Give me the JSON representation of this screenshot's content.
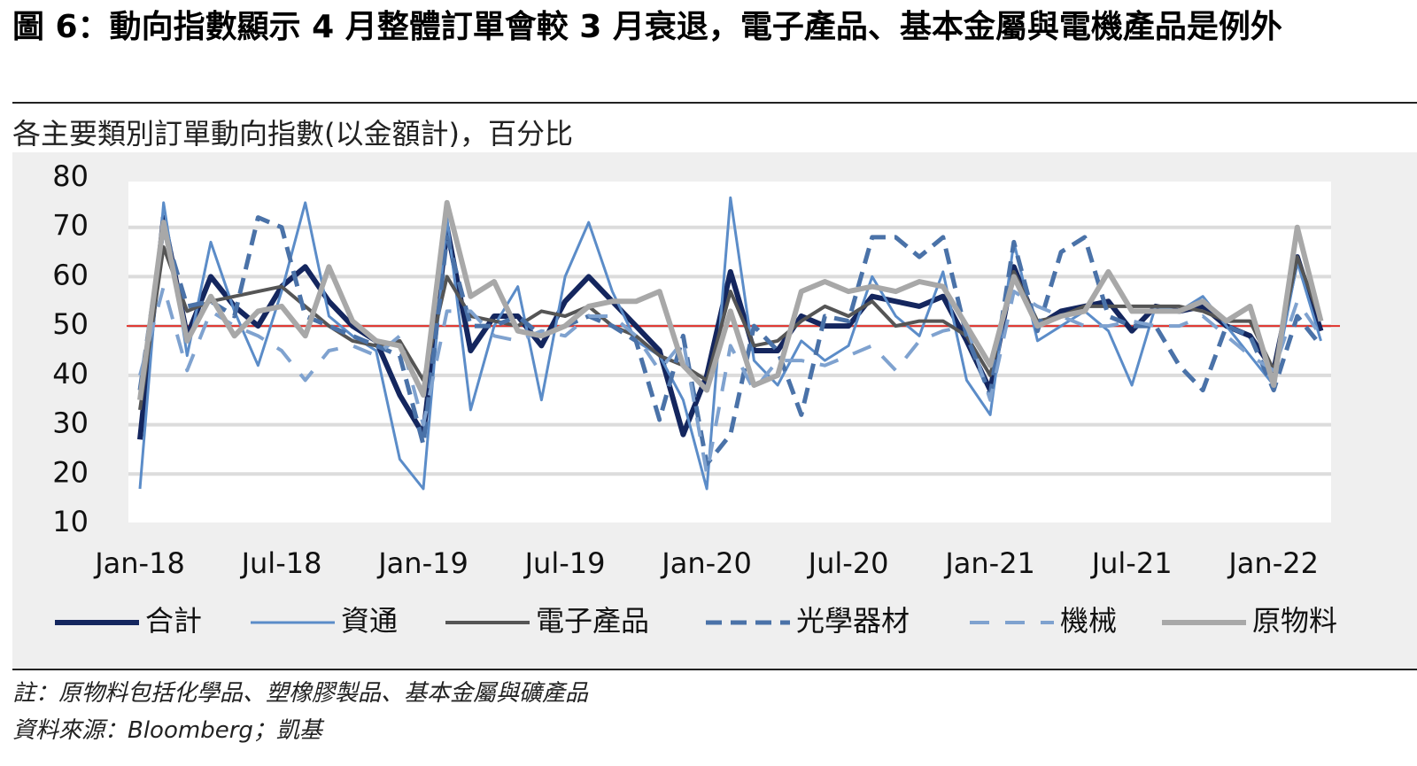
{
  "chart_data": {
    "type": "line",
    "title": "圖 6：動向指數顯示 4 月整體訂單會較 3 月衰退，電子產品、基本金屬與電機產品是例外",
    "subtitle": "各主要類別訂單動向指數(以金額計)，百分比",
    "notes": [
      "註：原物料包括化學品、塑橡膠製品、基本金屬與礦產品",
      "資料來源：Bloomberg；凱基"
    ],
    "categories": [
      "Jan-18",
      null,
      null,
      null,
      null,
      null,
      "Jul-18",
      null,
      null,
      null,
      null,
      null,
      "Jan-19",
      null,
      null,
      null,
      null,
      null,
      "Jul-19",
      null,
      null,
      null,
      null,
      null,
      "Jan-20",
      null,
      null,
      null,
      null,
      null,
      "Jul-20",
      null,
      null,
      null,
      null,
      null,
      "Jan-21",
      null,
      null,
      null,
      null,
      null,
      "Jul-21",
      null,
      null,
      null,
      null,
      null,
      "Jan-22",
      null,
      null
    ],
    "ylim": [
      10,
      80
    ],
    "yticks": [
      10,
      20,
      30,
      40,
      50,
      60,
      70,
      80
    ],
    "grid": true,
    "reference_line": {
      "value": 50,
      "color": "#e0302a"
    },
    "legend": "bottom",
    "series": [
      {
        "name": "合計",
        "color": "#14265e",
        "width": 6,
        "style": "solid",
        "values": [
          27,
          72,
          48,
          60,
          54,
          50,
          58,
          62,
          55,
          50,
          47,
          36,
          28,
          70,
          45,
          52,
          52,
          46,
          55,
          60,
          55,
          50,
          45,
          28,
          40,
          61,
          45,
          45,
          52,
          50,
          50,
          56,
          55,
          54,
          56,
          47,
          37,
          62,
          50,
          53,
          54,
          55,
          49,
          54,
          53,
          54,
          50,
          48,
          41,
          64,
          49
        ]
      },
      {
        "name": "資通",
        "color": "#5b8cc8",
        "width": 3,
        "style": "solid",
        "values": [
          17,
          75,
          44,
          67,
          53,
          42,
          57,
          75,
          52,
          48,
          45,
          23,
          17,
          72,
          33,
          50,
          58,
          35,
          60,
          71,
          57,
          47,
          44,
          35,
          17,
          76,
          43,
          38,
          47,
          43,
          46,
          60,
          52,
          48,
          61,
          39,
          32,
          67,
          47,
          50,
          53,
          49,
          38,
          54,
          53,
          56,
          50,
          44,
          38,
          63,
          47
        ]
      },
      {
        "name": "電子產品",
        "color": "#555555",
        "width": 4,
        "style": "solid",
        "values": [
          33,
          66,
          53,
          55,
          56,
          57,
          58,
          54,
          50,
          47,
          46,
          47,
          39,
          60,
          52,
          51,
          50,
          53,
          52,
          54,
          50,
          48,
          44,
          42,
          39,
          57,
          46,
          47,
          51,
          54,
          52,
          55,
          50,
          51,
          51,
          48,
          40,
          61,
          51,
          52,
          54,
          54,
          54,
          54,
          54,
          53,
          51,
          51,
          41,
          64,
          51
        ]
      },
      {
        "name": "光學器材",
        "color": "#4a72a8",
        "width": 5,
        "style": "dashed",
        "values": [
          37,
          70,
          54,
          55,
          52,
          72,
          70,
          52,
          50,
          48,
          46,
          44,
          26,
          68,
          50,
          50,
          52,
          48,
          50,
          52,
          50,
          47,
          31,
          48,
          22,
          28,
          50,
          45,
          32,
          52,
          51,
          68,
          68,
          64,
          68,
          48,
          36,
          67,
          49,
          65,
          68,
          52,
          50,
          50,
          42,
          37,
          50,
          48,
          37,
          52,
          46
        ]
      },
      {
        "name": "機械",
        "color": "#7fa2cf",
        "width": 4,
        "style": "dashed-wide",
        "values": [
          40,
          58,
          41,
          53,
          50,
          48,
          45,
          39,
          45,
          46,
          44,
          48,
          30,
          53,
          53,
          48,
          47,
          49,
          48,
          52,
          52,
          48,
          41,
          47,
          20,
          46,
          37,
          43,
          43,
          42,
          44,
          46,
          41,
          47,
          49,
          50,
          35,
          57,
          54,
          52,
          50,
          50,
          51,
          50,
          50,
          52,
          48,
          44,
          41,
          55,
          48
        ]
      },
      {
        "name": "原物料",
        "color": "#a8a8a8",
        "width": 6,
        "style": "solid",
        "values": [
          35,
          71,
          47,
          56,
          48,
          53,
          54,
          48,
          62,
          51,
          47,
          46,
          36,
          75,
          56,
          59,
          49,
          48,
          50,
          54,
          55,
          55,
          57,
          42,
          37,
          53,
          38,
          40,
          57,
          59,
          57,
          58,
          57,
          59,
          58,
          50,
          42,
          60,
          50,
          52,
          53,
          61,
          53,
          53,
          53,
          55,
          51,
          54,
          38,
          70,
          51
        ]
      }
    ]
  }
}
